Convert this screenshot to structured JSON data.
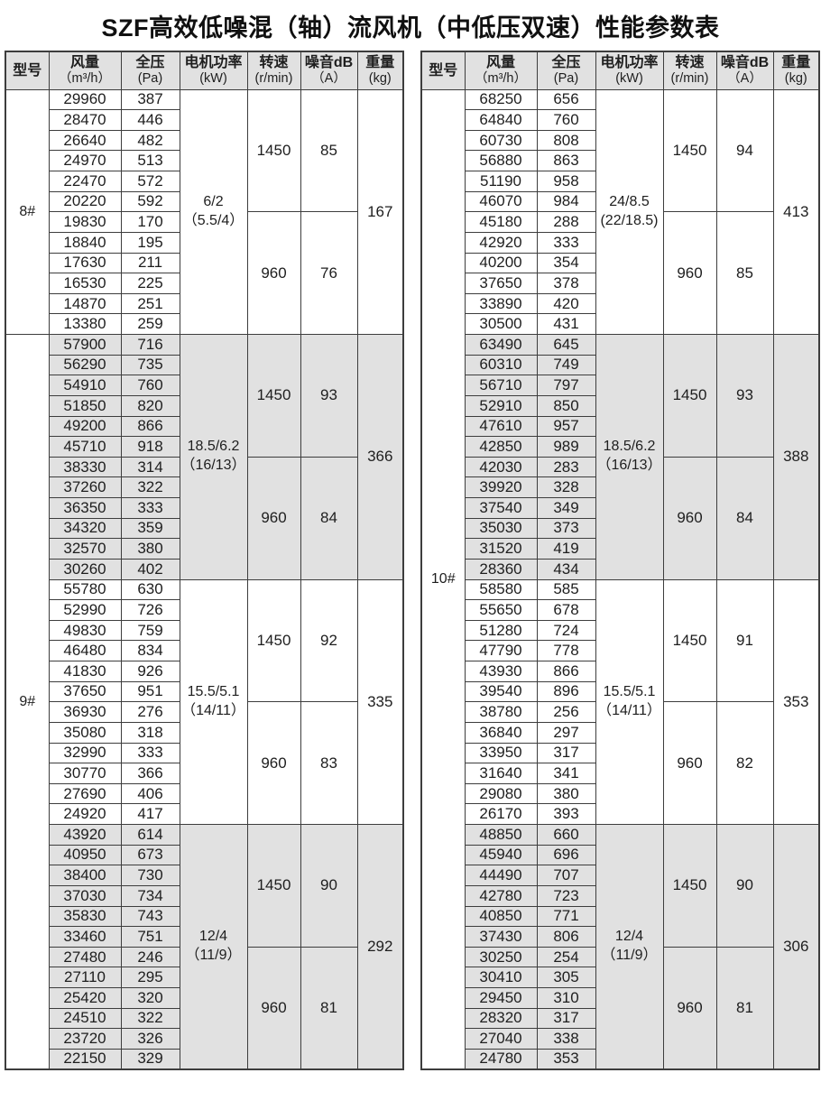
{
  "title": "SZF高效低噪混（轴）流风机（中低压双速）性能参数表",
  "colors": {
    "stripe": "#e1e1e1",
    "border": "#3d3d3d",
    "text": "#1e1e1e",
    "background": "#ffffff"
  },
  "header": {
    "columns": [
      {
        "key": "model",
        "label": "型号",
        "unit": ""
      },
      {
        "key": "flow",
        "label": "风量",
        "unit": "（m³/h）"
      },
      {
        "key": "pressure",
        "label": "全压",
        "unit": "(Pa)"
      },
      {
        "key": "motor",
        "label": "电机功率",
        "unit": "(kW)"
      },
      {
        "key": "speed",
        "label": "转速",
        "unit": "(r/min)"
      },
      {
        "key": "noise",
        "label": "噪音dB",
        "unit": "（A）"
      },
      {
        "key": "weight",
        "label": "重量",
        "unit": "(kg)"
      }
    ]
  },
  "tables": [
    {
      "side": "left",
      "models": [
        {
          "label": "8#",
          "rows": 12
        },
        {
          "label": "9#",
          "rows": 36
        }
      ],
      "sections": [
        {
          "shade": false,
          "motor": [
            "6/2",
            "（5.5/4）"
          ],
          "speed_groups": [
            {
              "speed": "1450",
              "noise": "85"
            },
            {
              "speed": "960",
              "noise": "76"
            }
          ],
          "weight": "167",
          "rows": [
            [
              "29960",
              "387"
            ],
            [
              "28470",
              "446"
            ],
            [
              "26640",
              "482"
            ],
            [
              "24970",
              "513"
            ],
            [
              "22470",
              "572"
            ],
            [
              "20220",
              "592"
            ],
            [
              "19830",
              "170"
            ],
            [
              "18840",
              "195"
            ],
            [
              "17630",
              "211"
            ],
            [
              "16530",
              "225"
            ],
            [
              "14870",
              "251"
            ],
            [
              "13380",
              "259"
            ]
          ]
        },
        {
          "shade": true,
          "motor": [
            "18.5/6.2",
            "（16/13）"
          ],
          "speed_groups": [
            {
              "speed": "1450",
              "noise": "93"
            },
            {
              "speed": "960",
              "noise": "84"
            }
          ],
          "weight": "366",
          "rows": [
            [
              "57900",
              "716"
            ],
            [
              "56290",
              "735"
            ],
            [
              "54910",
              "760"
            ],
            [
              "51850",
              "820"
            ],
            [
              "49200",
              "866"
            ],
            [
              "45710",
              "918"
            ],
            [
              "38330",
              "314"
            ],
            [
              "37260",
              "322"
            ],
            [
              "36350",
              "333"
            ],
            [
              "34320",
              "359"
            ],
            [
              "32570",
              "380"
            ],
            [
              "30260",
              "402"
            ]
          ]
        },
        {
          "shade": false,
          "motor": [
            "15.5/5.1",
            "（14/11）"
          ],
          "speed_groups": [
            {
              "speed": "1450",
              "noise": "92"
            },
            {
              "speed": "960",
              "noise": "83"
            }
          ],
          "weight": "335",
          "rows": [
            [
              "55780",
              "630"
            ],
            [
              "52990",
              "726"
            ],
            [
              "49830",
              "759"
            ],
            [
              "46480",
              "834"
            ],
            [
              "41830",
              "926"
            ],
            [
              "37650",
              "951"
            ],
            [
              "36930",
              "276"
            ],
            [
              "35080",
              "318"
            ],
            [
              "32990",
              "333"
            ],
            [
              "30770",
              "366"
            ],
            [
              "27690",
              "406"
            ],
            [
              "24920",
              "417"
            ]
          ]
        },
        {
          "shade": true,
          "motor": [
            "12/4",
            "（11/9）"
          ],
          "speed_groups": [
            {
              "speed": "1450",
              "noise": "90"
            },
            {
              "speed": "960",
              "noise": "81"
            }
          ],
          "weight": "292",
          "rows": [
            [
              "43920",
              "614"
            ],
            [
              "40950",
              "673"
            ],
            [
              "38400",
              "730"
            ],
            [
              "37030",
              "734"
            ],
            [
              "35830",
              "743"
            ],
            [
              "33460",
              "751"
            ],
            [
              "27480",
              "246"
            ],
            [
              "27110",
              "295"
            ],
            [
              "25420",
              "320"
            ],
            [
              "24510",
              "322"
            ],
            [
              "23720",
              "326"
            ],
            [
              "22150",
              "329"
            ]
          ]
        }
      ]
    },
    {
      "side": "right",
      "models": [
        {
          "label": "10#",
          "rows": 48
        }
      ],
      "sections": [
        {
          "shade": false,
          "motor": [
            "24/8.5",
            "(22/18.5)"
          ],
          "speed_groups": [
            {
              "speed": "1450",
              "noise": "94"
            },
            {
              "speed": "960",
              "noise": "85"
            }
          ],
          "weight": "413",
          "rows": [
            [
              "68250",
              "656"
            ],
            [
              "64840",
              "760"
            ],
            [
              "60730",
              "808"
            ],
            [
              "56880",
              "863"
            ],
            [
              "51190",
              "958"
            ],
            [
              "46070",
              "984"
            ],
            [
              "45180",
              "288"
            ],
            [
              "42920",
              "333"
            ],
            [
              "40200",
              "354"
            ],
            [
              "37650",
              "378"
            ],
            [
              "33890",
              "420"
            ],
            [
              "30500",
              "431"
            ]
          ]
        },
        {
          "shade": true,
          "motor": [
            "18.5/6.2",
            "（16/13）"
          ],
          "speed_groups": [
            {
              "speed": "1450",
              "noise": "93"
            },
            {
              "speed": "960",
              "noise": "84"
            }
          ],
          "weight": "388",
          "rows": [
            [
              "63490",
              "645"
            ],
            [
              "60310",
              "749"
            ],
            [
              "56710",
              "797"
            ],
            [
              "52910",
              "850"
            ],
            [
              "47610",
              "957"
            ],
            [
              "42850",
              "989"
            ],
            [
              "42030",
              "283"
            ],
            [
              "39920",
              "328"
            ],
            [
              "37540",
              "349"
            ],
            [
              "35030",
              "373"
            ],
            [
              "31520",
              "419"
            ],
            [
              "28360",
              "434"
            ]
          ]
        },
        {
          "shade": false,
          "motor": [
            "15.5/5.1",
            "（14/11）"
          ],
          "speed_groups": [
            {
              "speed": "1450",
              "noise": "91"
            },
            {
              "speed": "960",
              "noise": "82"
            }
          ],
          "weight": "353",
          "rows": [
            [
              "58580",
              "585"
            ],
            [
              "55650",
              "678"
            ],
            [
              "51280",
              "724"
            ],
            [
              "47790",
              "778"
            ],
            [
              "43930",
              "866"
            ],
            [
              "39540",
              "896"
            ],
            [
              "38780",
              "256"
            ],
            [
              "36840",
              "297"
            ],
            [
              "33950",
              "317"
            ],
            [
              "31640",
              "341"
            ],
            [
              "29080",
              "380"
            ],
            [
              "26170",
              "393"
            ]
          ]
        },
        {
          "shade": true,
          "motor": [
            "12/4",
            "（11/9）"
          ],
          "speed_groups": [
            {
              "speed": "1450",
              "noise": "90"
            },
            {
              "speed": "960",
              "noise": "81"
            }
          ],
          "weight": "306",
          "rows": [
            [
              "48850",
              "660"
            ],
            [
              "45940",
              "696"
            ],
            [
              "44490",
              "707"
            ],
            [
              "42780",
              "723"
            ],
            [
              "40850",
              "771"
            ],
            [
              "37430",
              "806"
            ],
            [
              "30250",
              "254"
            ],
            [
              "30410",
              "305"
            ],
            [
              "29450",
              "310"
            ],
            [
              "28320",
              "317"
            ],
            [
              "27040",
              "338"
            ],
            [
              "24780",
              "353"
            ]
          ]
        }
      ]
    }
  ]
}
